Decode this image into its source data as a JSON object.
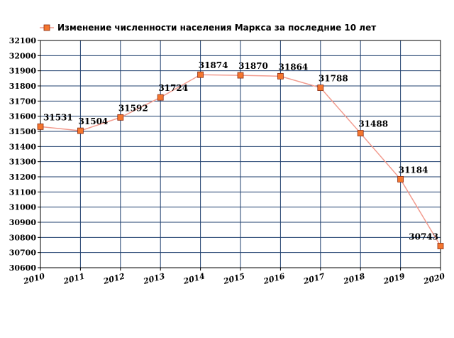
{
  "chart_data": {
    "type": "line",
    "title": "",
    "xlabel": "",
    "ylabel": "",
    "categories": [
      "2010",
      "2011",
      "2012",
      "2013",
      "2014",
      "2015",
      "2016",
      "2017",
      "2018",
      "2019",
      "2020"
    ],
    "series": [
      {
        "name": "Изменение численности населения Маркса за последние 10 лет",
        "values": [
          31531,
          31504,
          31592,
          31724,
          31874,
          31870,
          31864,
          31788,
          31488,
          31184,
          30743
        ]
      }
    ],
    "ylim": [
      30600,
      32100
    ],
    "yticks": [
      30600,
      30700,
      30800,
      30900,
      31000,
      31100,
      31200,
      31300,
      31400,
      31500,
      31600,
      31700,
      31800,
      31900,
      32000,
      32100
    ],
    "grid": true,
    "legend_position": "top-left",
    "colors": {
      "line": "#f29b8e",
      "marker_fill": "#f4762e",
      "marker_stroke": "#8a2a10",
      "grid": "#1f3f6e",
      "axis": "#000000"
    }
  }
}
